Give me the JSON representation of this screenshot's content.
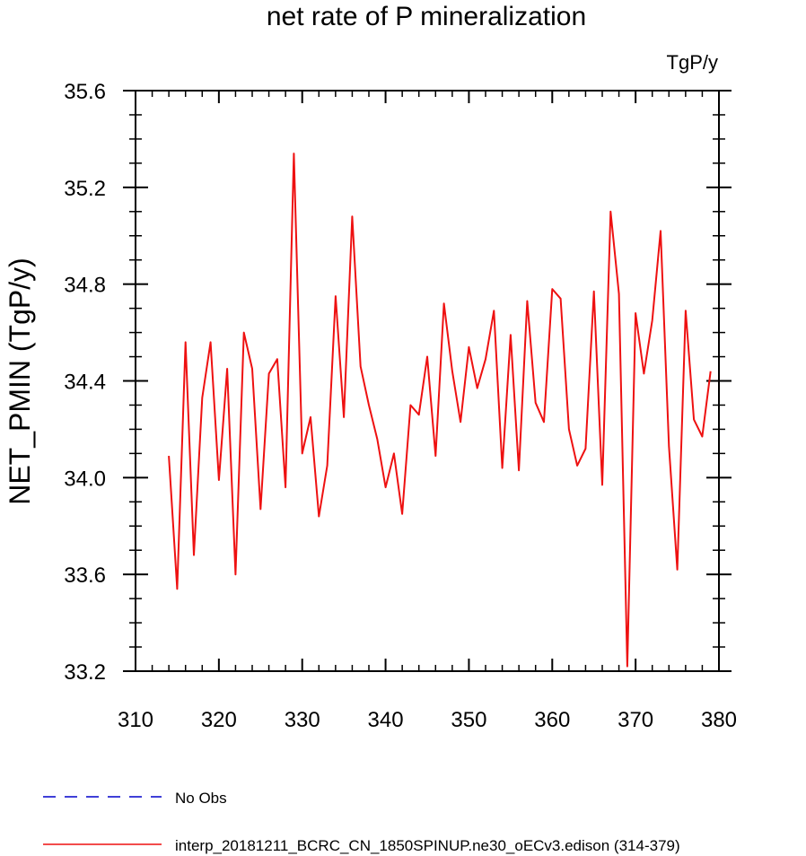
{
  "chart_data": {
    "type": "line",
    "title": "net rate of P mineralization",
    "units_label": "TgP/y",
    "xlabel": "",
    "ylabel": "NET_PMIN  (TgP/y)",
    "xlim": [
      310,
      380
    ],
    "ylim": [
      33.2,
      35.6
    ],
    "x_ticks": [
      310,
      320,
      330,
      340,
      350,
      360,
      370,
      380
    ],
    "y_ticks": [
      33.2,
      33.6,
      34.0,
      34.4,
      34.8,
      35.2,
      35.6
    ],
    "x_tick_labels": [
      "310",
      "320",
      "330",
      "340",
      "350",
      "360",
      "370",
      "380"
    ],
    "y_tick_labels": [
      "33.2",
      "33.6",
      "34.0",
      "34.4",
      "34.8",
      "35.2",
      "35.6"
    ],
    "grid": false,
    "legend_position": "bottom-left",
    "series": [
      {
        "name": "No Obs",
        "color": "#0000cc",
        "dash": "dashed",
        "x": [],
        "y": []
      },
      {
        "name": "interp_20181211_BCRC_CN_1850SPINUP.ne30_oECv3.edison (314-379)",
        "color": "#ee1111",
        "dash": "solid",
        "x": [
          314,
          315,
          316,
          317,
          318,
          319,
          320,
          321,
          322,
          323,
          324,
          325,
          326,
          327,
          328,
          329,
          330,
          331,
          332,
          333,
          334,
          335,
          336,
          337,
          338,
          339,
          340,
          341,
          342,
          343,
          344,
          345,
          346,
          347,
          348,
          349,
          350,
          351,
          352,
          353,
          354,
          355,
          356,
          357,
          358,
          359,
          360,
          361,
          362,
          363,
          364,
          365,
          366,
          367,
          368,
          369,
          370,
          371,
          372,
          373,
          374,
          375,
          376,
          377,
          378,
          379
        ],
        "y": [
          34.09,
          33.54,
          34.56,
          33.68,
          34.33,
          34.56,
          33.99,
          34.45,
          33.6,
          34.6,
          34.45,
          33.87,
          34.43,
          34.49,
          33.96,
          35.34,
          34.1,
          34.25,
          33.84,
          34.05,
          34.75,
          34.25,
          35.08,
          34.46,
          34.3,
          34.16,
          33.96,
          34.1,
          33.85,
          34.3,
          34.26,
          34.5,
          34.09,
          34.72,
          34.44,
          34.23,
          34.54,
          34.37,
          34.49,
          34.69,
          34.04,
          34.59,
          34.03,
          34.73,
          34.31,
          34.23,
          34.78,
          34.74,
          34.2,
          34.05,
          34.12,
          34.77,
          33.97,
          35.1,
          34.76,
          33.22,
          34.68,
          34.43,
          34.65,
          35.02,
          34.13,
          33.62,
          34.69,
          34.24,
          34.17,
          34.44
        ]
      }
    ]
  }
}
